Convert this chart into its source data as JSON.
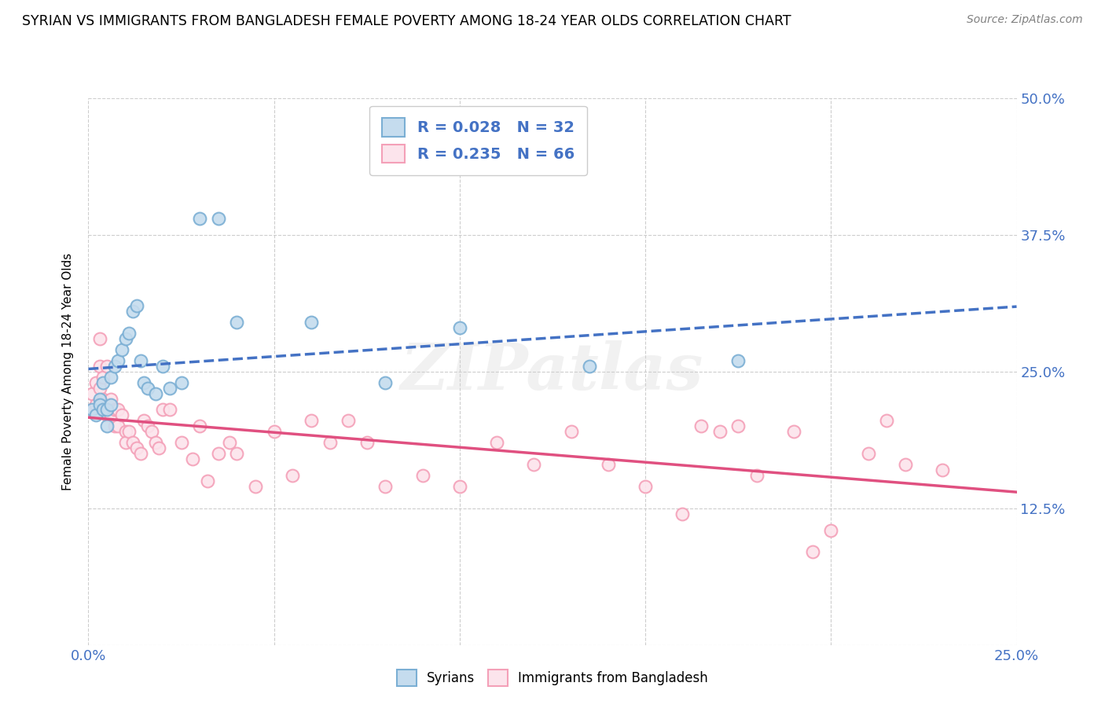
{
  "title": "SYRIAN VS IMMIGRANTS FROM BANGLADESH FEMALE POVERTY AMONG 18-24 YEAR OLDS CORRELATION CHART",
  "source": "Source: ZipAtlas.com",
  "ylabel": "Female Poverty Among 18-24 Year Olds",
  "xlim": [
    0.0,
    0.25
  ],
  "ylim": [
    0.0,
    0.5
  ],
  "xticks": [
    0.0,
    0.05,
    0.1,
    0.15,
    0.2,
    0.25
  ],
  "yticks": [
    0.0,
    0.125,
    0.25,
    0.375,
    0.5
  ],
  "xtick_labels": [
    "0.0%",
    "",
    "",
    "",
    "",
    "25.0%"
  ],
  "ytick_labels": [
    "",
    "12.5%",
    "25.0%",
    "37.5%",
    "50.0%"
  ],
  "background_color": "#ffffff",
  "grid_color": "#c8c8c8",
  "watermark": "ZIPatlas",
  "syrians_color": "#7bafd4",
  "syrians_fill": "#c5dcee",
  "syrians_R": 0.028,
  "syrians_N": 32,
  "syrians_trend_color": "#4472c4",
  "bangladesh_color": "#f4a0b8",
  "bangladesh_fill": "#fce4ec",
  "bangladesh_R": 0.235,
  "bangladesh_N": 66,
  "bangladesh_trend_color": "#e05080",
  "syrians_x": [
    0.001,
    0.002,
    0.003,
    0.003,
    0.004,
    0.004,
    0.005,
    0.005,
    0.006,
    0.006,
    0.007,
    0.008,
    0.009,
    0.01,
    0.011,
    0.012,
    0.013,
    0.014,
    0.015,
    0.016,
    0.018,
    0.02,
    0.022,
    0.025,
    0.03,
    0.035,
    0.04,
    0.06,
    0.08,
    0.1,
    0.135,
    0.175
  ],
  "syrians_y": [
    0.215,
    0.21,
    0.225,
    0.22,
    0.24,
    0.215,
    0.2,
    0.215,
    0.245,
    0.22,
    0.255,
    0.26,
    0.27,
    0.28,
    0.285,
    0.305,
    0.31,
    0.26,
    0.24,
    0.235,
    0.23,
    0.255,
    0.235,
    0.24,
    0.39,
    0.39,
    0.295,
    0.295,
    0.24,
    0.29,
    0.255,
    0.26
  ],
  "bangladesh_x": [
    0.001,
    0.001,
    0.002,
    0.002,
    0.003,
    0.003,
    0.003,
    0.004,
    0.004,
    0.005,
    0.005,
    0.005,
    0.006,
    0.006,
    0.007,
    0.007,
    0.008,
    0.008,
    0.009,
    0.01,
    0.01,
    0.011,
    0.012,
    0.013,
    0.014,
    0.015,
    0.016,
    0.017,
    0.018,
    0.019,
    0.02,
    0.022,
    0.025,
    0.028,
    0.03,
    0.032,
    0.035,
    0.038,
    0.04,
    0.045,
    0.05,
    0.055,
    0.06,
    0.065,
    0.07,
    0.075,
    0.08,
    0.09,
    0.1,
    0.11,
    0.12,
    0.13,
    0.14,
    0.15,
    0.16,
    0.165,
    0.17,
    0.175,
    0.18,
    0.19,
    0.195,
    0.2,
    0.21,
    0.215,
    0.22,
    0.23
  ],
  "bangladesh_y": [
    0.23,
    0.215,
    0.24,
    0.22,
    0.28,
    0.255,
    0.235,
    0.245,
    0.225,
    0.255,
    0.22,
    0.21,
    0.225,
    0.21,
    0.215,
    0.2,
    0.215,
    0.2,
    0.21,
    0.195,
    0.185,
    0.195,
    0.185,
    0.18,
    0.175,
    0.205,
    0.2,
    0.195,
    0.185,
    0.18,
    0.215,
    0.215,
    0.185,
    0.17,
    0.2,
    0.15,
    0.175,
    0.185,
    0.175,
    0.145,
    0.195,
    0.155,
    0.205,
    0.185,
    0.205,
    0.185,
    0.145,
    0.155,
    0.145,
    0.185,
    0.165,
    0.195,
    0.165,
    0.145,
    0.12,
    0.2,
    0.195,
    0.2,
    0.155,
    0.195,
    0.085,
    0.105,
    0.175,
    0.205,
    0.165,
    0.16
  ]
}
